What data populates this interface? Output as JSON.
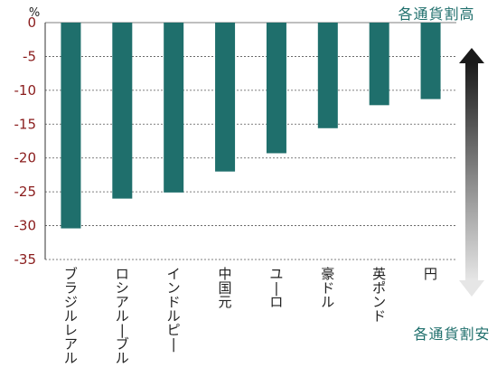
{
  "chart_data": {
    "type": "bar",
    "categories": [
      "ブラジルレアル",
      "ロシアルーブル",
      "インドルピー",
      "中国元",
      "ユーロ",
      "豪ドル",
      "英ポンド",
      "円"
    ],
    "values": [
      -30.4,
      -26.0,
      -25.1,
      -22.0,
      -19.3,
      -15.6,
      -12.2,
      -11.3
    ],
    "ylim": [
      -35,
      0
    ],
    "yticks": [
      0,
      -5,
      -10,
      -15,
      -20,
      -25,
      -30,
      -35
    ],
    "ylabel": "%",
    "grid": true,
    "bar_color": "#1f6f6c",
    "tick_color": "#8a1c1c",
    "annotations": {
      "top": "各通貨割高",
      "bottom": "各通貨割安"
    }
  }
}
